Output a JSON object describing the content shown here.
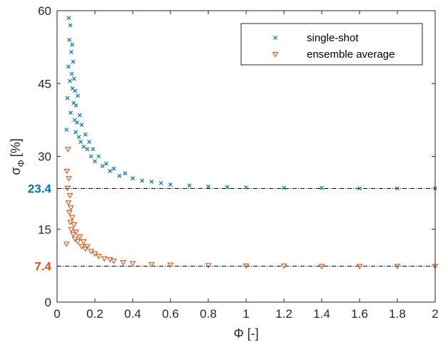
{
  "chart_data": {
    "type": "scatter",
    "title": "",
    "xlabel": "Φ [-]",
    "ylabel_main": "σ",
    "ylabel_sub": "Φ",
    "ylabel_unit": "[%]",
    "xlim": [
      0,
      2
    ],
    "ylim": [
      0,
      60
    ],
    "x_ticks": [
      0,
      0.2,
      0.4,
      0.6,
      0.8,
      1,
      1.2,
      1.4,
      1.6,
      1.8,
      2
    ],
    "x_tick_labels": [
      "0",
      "0.2",
      "0.4",
      "0.6",
      "0.8",
      "1",
      "1.2",
      "1.4",
      "1.6",
      "1.8",
      "2"
    ],
    "y_ticks": [
      0,
      15,
      30,
      45,
      60
    ],
    "y_tick_labels": [
      "0",
      "15",
      "30",
      "45",
      "60"
    ],
    "grid": false,
    "legend_position": "top-right",
    "series": [
      {
        "name": "single-shot",
        "marker": "x",
        "color": "#0072BD",
        "asymptote": 23.4,
        "points": [
          [
            0.05,
            35.5
          ],
          [
            0.055,
            42.0
          ],
          [
            0.06,
            48.5
          ],
          [
            0.062,
            58.5
          ],
          [
            0.065,
            54.0
          ],
          [
            0.068,
            45.5
          ],
          [
            0.07,
            57.0
          ],
          [
            0.072,
            39.0
          ],
          [
            0.075,
            51.5
          ],
          [
            0.078,
            47.0
          ],
          [
            0.08,
            53.0
          ],
          [
            0.082,
            44.0
          ],
          [
            0.085,
            49.5
          ],
          [
            0.088,
            41.0
          ],
          [
            0.09,
            46.0
          ],
          [
            0.093,
            37.5
          ],
          [
            0.095,
            43.5
          ],
          [
            0.098,
            35.0
          ],
          [
            0.1,
            40.5
          ],
          [
            0.105,
            37.0
          ],
          [
            0.11,
            42.5
          ],
          [
            0.115,
            34.0
          ],
          [
            0.12,
            38.5
          ],
          [
            0.125,
            33.0
          ],
          [
            0.13,
            36.5
          ],
          [
            0.14,
            32.0
          ],
          [
            0.15,
            34.5
          ],
          [
            0.16,
            31.5
          ],
          [
            0.17,
            33.0
          ],
          [
            0.18,
            30.0
          ],
          [
            0.19,
            31.5
          ],
          [
            0.2,
            29.0
          ],
          [
            0.22,
            30.0
          ],
          [
            0.24,
            28.0
          ],
          [
            0.26,
            28.5
          ],
          [
            0.28,
            27.0
          ],
          [
            0.3,
            27.5
          ],
          [
            0.33,
            26.0
          ],
          [
            0.36,
            26.5
          ],
          [
            0.4,
            25.5
          ],
          [
            0.45,
            25.0
          ],
          [
            0.5,
            24.8
          ],
          [
            0.55,
            24.5
          ],
          [
            0.6,
            24.2
          ],
          [
            0.7,
            24.0
          ],
          [
            0.8,
            23.8
          ],
          [
            0.9,
            23.7
          ],
          [
            1.0,
            23.6
          ],
          [
            1.2,
            23.5
          ],
          [
            1.4,
            23.5
          ],
          [
            1.6,
            23.4
          ],
          [
            1.8,
            23.4
          ],
          [
            2.0,
            23.4
          ]
        ]
      },
      {
        "name": "ensemble average",
        "marker": "triangle-down",
        "color": "#D95319",
        "asymptote": 7.4,
        "points": [
          [
            0.05,
            12.0
          ],
          [
            0.052,
            27.0
          ],
          [
            0.055,
            23.5
          ],
          [
            0.058,
            31.5
          ],
          [
            0.06,
            20.5
          ],
          [
            0.062,
            25.5
          ],
          [
            0.065,
            18.5
          ],
          [
            0.068,
            22.0
          ],
          [
            0.07,
            16.5
          ],
          [
            0.073,
            19.5
          ],
          [
            0.075,
            15.0
          ],
          [
            0.08,
            17.5
          ],
          [
            0.085,
            14.0
          ],
          [
            0.09,
            16.0
          ],
          [
            0.095,
            13.0
          ],
          [
            0.1,
            14.5
          ],
          [
            0.11,
            12.5
          ],
          [
            0.12,
            13.5
          ],
          [
            0.13,
            11.5
          ],
          [
            0.14,
            12.5
          ],
          [
            0.15,
            11.0
          ],
          [
            0.16,
            11.5
          ],
          [
            0.18,
            10.5
          ],
          [
            0.2,
            10.0
          ],
          [
            0.22,
            9.5
          ],
          [
            0.25,
            9.0
          ],
          [
            0.28,
            8.8
          ],
          [
            0.3,
            8.5
          ],
          [
            0.35,
            8.2
          ],
          [
            0.4,
            8.0
          ],
          [
            0.5,
            7.8
          ],
          [
            0.6,
            7.7
          ],
          [
            0.8,
            7.6
          ],
          [
            1.0,
            7.5
          ],
          [
            1.2,
            7.5
          ],
          [
            1.4,
            7.4
          ],
          [
            1.6,
            7.4
          ],
          [
            1.8,
            7.4
          ],
          [
            2.0,
            7.4
          ]
        ]
      }
    ],
    "annotations": [
      {
        "text": "23.4",
        "y": 23.4,
        "color": "#0072BD"
      },
      {
        "text": "7.4",
        "y": 7.4,
        "color": "#D95319"
      }
    ]
  }
}
